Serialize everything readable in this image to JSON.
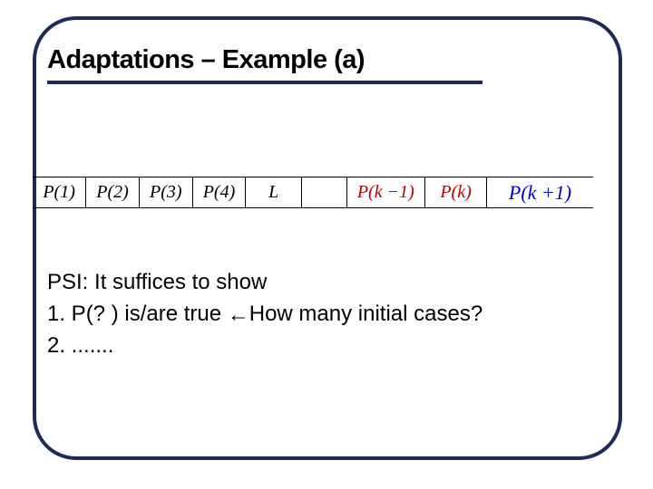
{
  "title": {
    "text": "Adaptations – Example (a)",
    "fontsize": 29,
    "color": "#000000",
    "underline_color": "#1f2a5a"
  },
  "frame": {
    "border_color": "#1f2a5a",
    "border_width": 4,
    "border_radius": 48
  },
  "table": {
    "cells": [
      {
        "text": "P(1)",
        "color": "#000000",
        "fontsize": 20,
        "class": ""
      },
      {
        "text": "P(2)",
        "color": "#000000",
        "fontsize": 20,
        "class": ""
      },
      {
        "text": "P(3)",
        "color": "#000000",
        "fontsize": 20,
        "class": ""
      },
      {
        "text": "P(4)",
        "color": "#000000",
        "fontsize": 20,
        "class": ""
      },
      {
        "text": "L",
        "color": "#000000",
        "fontsize": 20,
        "class": "cell-l"
      },
      {
        "text": "",
        "color": "#000000",
        "fontsize": 20,
        "class": ""
      },
      {
        "text": "P(k −1)",
        "color": "#c00000",
        "fontsize": 20,
        "class": "cell-red"
      },
      {
        "text": "P(k)",
        "color": "#c00000",
        "fontsize": 20,
        "class": "cell-red"
      },
      {
        "text": "P(k +1)",
        "color": "#0000c0",
        "fontsize": 22,
        "class": "cell-blue"
      }
    ],
    "col_widths_pct": [
      9.5,
      9.5,
      9.5,
      9.5,
      10,
      8,
      14,
      11,
      19
    ],
    "border_color": "#000000"
  },
  "body": {
    "fontsize": 24,
    "line1": "PSI: It suffices to show",
    "line2_a": "1. P(? ) is/are true ",
    "line2_arrow": "←",
    "line2_b": "How many initial cases?",
    "line3": "2. ......."
  }
}
